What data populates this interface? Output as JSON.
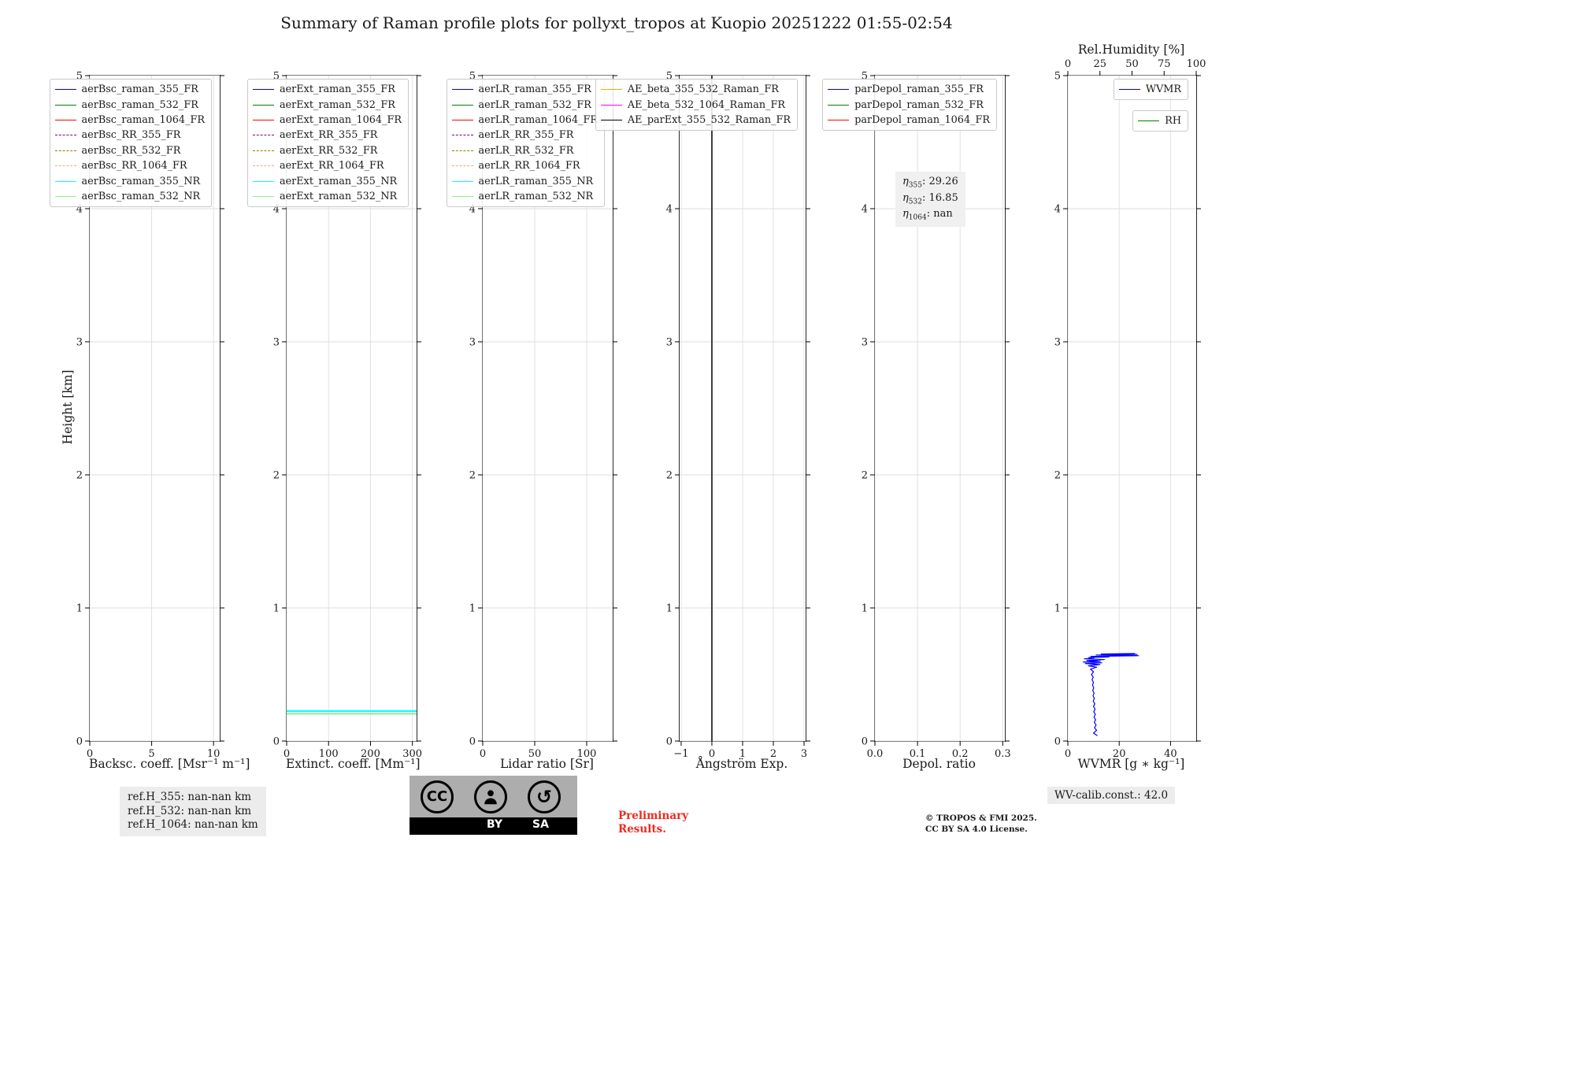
{
  "title": "Summary of Raman profile plots for pollyxt_tropos at Kuopio 20251222 01:55-02:54",
  "ylabel": "Height [km]",
  "footer": {
    "ref1": "ref.H_355: nan-nan km",
    "ref2": "ref.H_532: nan-nan km",
    "ref3": "ref.H_1064: nan-nan km",
    "cc_label": "CC",
    "cc_by": "BY",
    "cc_sa": "SA",
    "share_alike_glyph": "↺",
    "preliminary1": "Preliminary",
    "preliminary2": "Results.",
    "copyright1": "© TROPOS & FMI 2025.",
    "copyright2": "CC BY SA 4.0 License.",
    "wv_calib": "WV-calib.const.: 42.0"
  },
  "chart_data": [
    {
      "id": "backscatter",
      "type": "line",
      "xlabel": "Backsc. coeff. [Msr⁻¹ m⁻¹]",
      "xlim": [
        0,
        10.5
      ],
      "xtick_vals": [
        0,
        5,
        10
      ],
      "xtick_labels": [
        "0",
        "5",
        "10"
      ],
      "ylim": [
        0,
        5
      ],
      "ytick_vals": [
        0,
        1,
        2,
        3,
        4,
        5
      ],
      "ytick_labels": [
        "0",
        "1",
        "2",
        "3",
        "4",
        "5"
      ],
      "grid": true,
      "legend_position": "upper right",
      "legend": [
        {
          "label": "aerBsc_raman_355_FR",
          "color": "#0000ff",
          "dash": false
        },
        {
          "label": "aerBsc_raman_532_FR",
          "color": "#008000",
          "dash": false
        },
        {
          "label": "aerBsc_raman_1064_FR",
          "color": "#ff0000",
          "dash": false
        },
        {
          "label": "aerBsc_RR_355_FR",
          "color": "#800080",
          "dash": true
        },
        {
          "label": "aerBsc_RR_532_FR",
          "color": "#8b8000",
          "dash": true
        },
        {
          "label": "aerBsc_RR_1064_FR",
          "color": "#ffa07a",
          "dash": true
        },
        {
          "label": "aerBsc_raman_355_NR",
          "color": "#00ffff",
          "dash": false
        },
        {
          "label": "aerBsc_raman_532_NR",
          "color": "#90ee90",
          "dash": false
        }
      ],
      "series": []
    },
    {
      "id": "extinction",
      "type": "line",
      "xlabel": "Extinct. coeff. [Mm⁻¹]",
      "xlim": [
        0,
        310
      ],
      "xtick_vals": [
        0,
        100,
        200,
        300
      ],
      "xtick_labels": [
        "0",
        "100",
        "200",
        "300"
      ],
      "ylim": [
        0,
        5
      ],
      "ytick_vals": [
        0,
        1,
        2,
        3,
        4,
        5
      ],
      "ytick_labels": [
        "0",
        "1",
        "2",
        "3",
        "4",
        "5"
      ],
      "grid": true,
      "legend_position": "upper right",
      "legend": [
        {
          "label": "aerExt_raman_355_FR",
          "color": "#0000ff",
          "dash": false
        },
        {
          "label": "aerExt_raman_532_FR",
          "color": "#008000",
          "dash": false
        },
        {
          "label": "aerExt_raman_1064_FR",
          "color": "#ff0000",
          "dash": false
        },
        {
          "label": "aerExt_RR_355_FR",
          "color": "#800080",
          "dash": true
        },
        {
          "label": "aerExt_RR_532_FR",
          "color": "#8b8000",
          "dash": true
        },
        {
          "label": "aerExt_RR_1064_FR",
          "color": "#ffa07a",
          "dash": true
        },
        {
          "label": "aerExt_raman_355_NR",
          "color": "#00ffff",
          "dash": false
        },
        {
          "label": "aerExt_raman_532_NR",
          "color": "#90ee90",
          "dash": false
        }
      ],
      "series": [
        {
          "name": "aerExt_raman_355_NR",
          "color": "#00ffff",
          "width": 2,
          "points": [
            [
              0,
              0.225
            ],
            [
              310,
              0.225
            ]
          ]
        },
        {
          "name": "aerExt_raman_532_NR",
          "color": "#90ee90",
          "width": 2,
          "points": [
            [
              0,
              0.205
            ],
            [
              310,
              0.205
            ]
          ]
        }
      ]
    },
    {
      "id": "lidar-ratio",
      "type": "line",
      "xlabel": "Lidar ratio [Sr]",
      "xlim": [
        0,
        125
      ],
      "xtick_vals": [
        0,
        50,
        100
      ],
      "xtick_labels": [
        "0",
        "50",
        "100"
      ],
      "ylim": [
        0,
        5
      ],
      "ytick_vals": [
        0,
        1,
        2,
        3,
        4,
        5
      ],
      "ytick_labels": [
        "0",
        "1",
        "2",
        "3",
        "4",
        "5"
      ],
      "grid": true,
      "legend_position": "upper right",
      "legend": [
        {
          "label": "aerLR_raman_355_FR",
          "color": "#0000ff",
          "dash": false
        },
        {
          "label": "aerLR_raman_532_FR",
          "color": "#008000",
          "dash": false
        },
        {
          "label": "aerLR_raman_1064_FR",
          "color": "#ff0000",
          "dash": false
        },
        {
          "label": "aerLR_RR_355_FR",
          "color": "#800080",
          "dash": true
        },
        {
          "label": "aerLR_RR_532_FR",
          "color": "#8b8000",
          "dash": true
        },
        {
          "label": "aerLR_RR_1064_FR",
          "color": "#ffa07a",
          "dash": true
        },
        {
          "label": "aerLR_raman_355_NR",
          "color": "#00ffff",
          "dash": false
        },
        {
          "label": "aerLR_raman_532_NR",
          "color": "#90ee90",
          "dash": false
        }
      ],
      "series": []
    },
    {
      "id": "angstroem",
      "type": "line",
      "xlabel": "Ångström Exp.",
      "xlim": [
        -1.05,
        3.05
      ],
      "xtick_vals": [
        -1,
        0,
        1,
        2,
        3
      ],
      "xtick_labels": [
        "−1",
        "0",
        "1",
        "2",
        "3"
      ],
      "ylim": [
        0,
        5
      ],
      "ytick_vals": [
        0,
        1,
        2,
        3,
        4,
        5
      ],
      "ytick_labels": [
        "0",
        "1",
        "2",
        "3",
        "4",
        "5"
      ],
      "grid": true,
      "legend_position": "upper right",
      "legend": [
        {
          "label": "AE_beta_355_532_Raman_FR",
          "color": "#ffa500",
          "dash": false
        },
        {
          "label": "AE_beta_532_1064_Raman_FR",
          "color": "#ff00ff",
          "dash": false
        },
        {
          "label": "AE_parExt_355_532_Raman_FR",
          "color": "#000000",
          "dash": false
        }
      ],
      "series": [
        {
          "name": "AE_parExt_355_532_Raman_FR",
          "color": "#000000",
          "width": 1.5,
          "points": [
            [
              0,
              0
            ],
            [
              0,
              5
            ]
          ]
        }
      ]
    },
    {
      "id": "depol",
      "type": "line",
      "xlabel": "Depol. ratio",
      "xlim": [
        0,
        0.305
      ],
      "xtick_vals": [
        0,
        0.1,
        0.2,
        0.3
      ],
      "xtick_labels": [
        "0.0",
        "0.1",
        "0.2",
        "0.3"
      ],
      "ylim": [
        0,
        5
      ],
      "ytick_vals": [
        0,
        1,
        2,
        3,
        4,
        5
      ],
      "ytick_labels": [
        "0",
        "1",
        "2",
        "3",
        "4",
        "5"
      ],
      "grid": true,
      "legend_position": "upper right",
      "legend": [
        {
          "label": "parDepol_raman_355_FR",
          "color": "#0000ff",
          "dash": false
        },
        {
          "label": "parDepol_raman_532_FR",
          "color": "#008000",
          "dash": false
        },
        {
          "label": "parDepol_raman_1064_FR",
          "color": "#ff0000",
          "dash": false
        }
      ],
      "annotation": {
        "lines": [
          {
            "sym": "η",
            "sub": "355",
            "val": ": 29.26"
          },
          {
            "sym": "η",
            "sub": "532",
            "val": ": 16.85"
          },
          {
            "sym": "η",
            "sub": "1064",
            "val": ": nan"
          }
        ]
      },
      "series": []
    },
    {
      "id": "wvmr",
      "type": "line",
      "xlabel": "WVMR [g ∗ kg⁻¹]",
      "xlim": [
        0,
        50
      ],
      "xtick_vals": [
        0,
        20,
        40
      ],
      "xtick_labels": [
        "0",
        "20",
        "40"
      ],
      "ylim": [
        0,
        5
      ],
      "ytick_vals": [
        0,
        1,
        2,
        3,
        4,
        5
      ],
      "ytick_labels": [
        "0",
        "1",
        "2",
        "3",
        "4",
        "5"
      ],
      "grid": true,
      "legend_position": "upper right",
      "top_axis": {
        "label": "Rel.Humidity [%]",
        "xlim": [
          0,
          100
        ],
        "xtick_vals": [
          0,
          25,
          50,
          75,
          100
        ],
        "xtick_labels": [
          "0",
          "25",
          "50",
          "75",
          "100"
        ]
      },
      "legend_boxes": [
        [
          {
            "label": "WVMR",
            "color": "#0000ff",
            "dash": false
          }
        ],
        [
          {
            "label": "RH",
            "color": "#008000",
            "dash": false
          }
        ]
      ],
      "series": [
        {
          "name": "WVMR",
          "color": "#0000ff",
          "width": 1.2,
          "points": [
            [
              11.5,
              0.04
            ],
            [
              10.0,
              0.06
            ],
            [
              11.2,
              0.08
            ],
            [
              10.4,
              0.1
            ],
            [
              11.0,
              0.12
            ],
            [
              10.3,
              0.14
            ],
            [
              10.8,
              0.16
            ],
            [
              10.2,
              0.18
            ],
            [
              10.7,
              0.2
            ],
            [
              10.1,
              0.22
            ],
            [
              10.6,
              0.24
            ],
            [
              10.0,
              0.26
            ],
            [
              10.5,
              0.28
            ],
            [
              9.9,
              0.3
            ],
            [
              10.3,
              0.32
            ],
            [
              9.8,
              0.34
            ],
            [
              10.2,
              0.36
            ],
            [
              9.7,
              0.38
            ],
            [
              10.1,
              0.4
            ],
            [
              9.6,
              0.42
            ],
            [
              10.0,
              0.44
            ],
            [
              9.4,
              0.46
            ],
            [
              9.9,
              0.48
            ],
            [
              9.2,
              0.5
            ],
            [
              10.0,
              0.52
            ],
            [
              8.8,
              0.54
            ],
            [
              11.2,
              0.555
            ],
            [
              8.0,
              0.565
            ],
            [
              12.5,
              0.575
            ],
            [
              6.8,
              0.582
            ],
            [
              13.2,
              0.588
            ],
            [
              6.0,
              0.594
            ],
            [
              12.6,
              0.6
            ],
            [
              7.4,
              0.606
            ],
            [
              14.2,
              0.612
            ],
            [
              6.4,
              0.618
            ],
            [
              10.2,
              0.623
            ],
            [
              8.2,
              0.628
            ],
            [
              16.0,
              0.632
            ],
            [
              9.0,
              0.636
            ],
            [
              27.5,
              0.641
            ],
            [
              11.0,
              0.646
            ],
            [
              27.0,
              0.65
            ],
            [
              13.0,
              0.654
            ],
            [
              26.2,
              0.658
            ]
          ]
        }
      ]
    }
  ]
}
